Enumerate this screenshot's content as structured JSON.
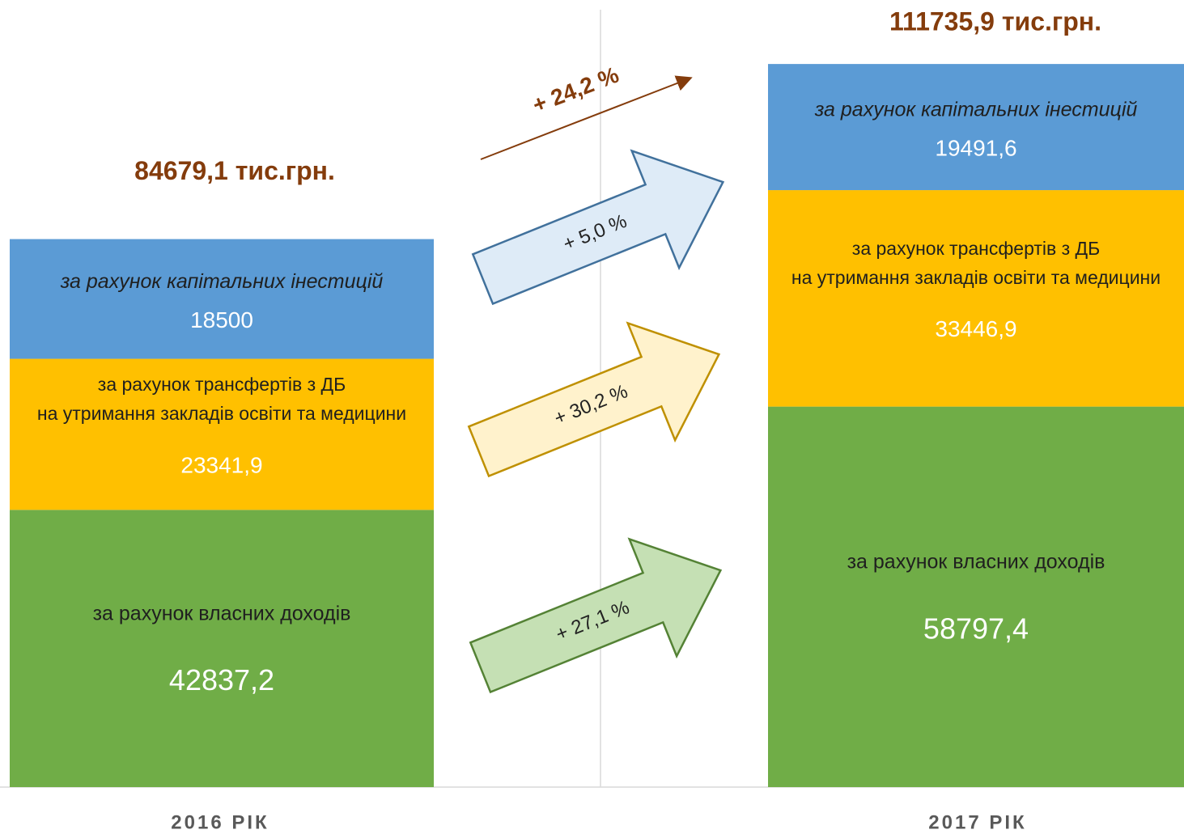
{
  "chart_data": {
    "type": "stacked_bar",
    "categories": [
      "2016 РІК",
      "2017 РІК"
    ],
    "series": [
      {
        "name": "за рахунок власних доходів",
        "color": "#70ad47",
        "values": [
          42837.2,
          58797.4
        ],
        "value_labels": [
          "42837,2",
          "58797,4"
        ]
      },
      {
        "name": "за рахунок трансфертів з ДБ\nна утримання закладів освіти та медицини",
        "color": "#ffc000",
        "values": [
          23341.9,
          33446.9
        ],
        "value_labels": [
          "23341,9",
          "33446,9"
        ]
      },
      {
        "name": "за рахунок капітальних інестицій",
        "color": "#5b9bd5",
        "values": [
          18500,
          19491.6
        ],
        "value_labels": [
          "18500",
          "19491,6"
        ]
      }
    ],
    "total_labels": [
      "84679,1 тис.грн.",
      "111735,9 тис.грн."
    ],
    "total_growth_label": "+ 24,2 %",
    "growth_labels": [
      "+ 27,1 %",
      "+ 30,2 %",
      "+ 5,0 %"
    ],
    "ylim": [
      0,
      120000
    ]
  }
}
